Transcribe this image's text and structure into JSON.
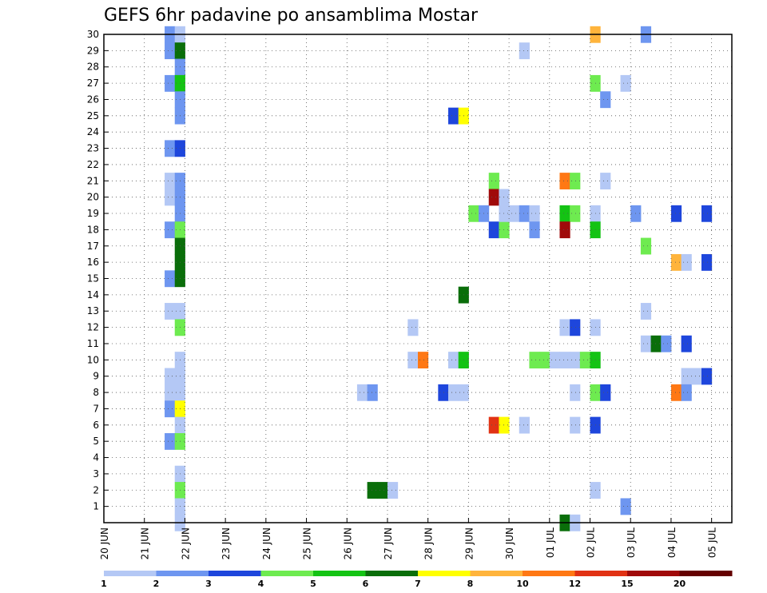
{
  "chart_data": {
    "type": "heatmap",
    "title": "GEFS 6hr padavine po ansamblima Mostar",
    "y_ticks": [
      "1",
      "2",
      "3",
      "4",
      "5",
      "6",
      "7",
      "8",
      "9",
      "10",
      "11",
      "12",
      "13",
      "14",
      "15",
      "16",
      "17",
      "18",
      "19",
      "20",
      "21",
      "22",
      "23",
      "24",
      "25",
      "26",
      "27",
      "28",
      "29",
      "30"
    ],
    "x_ticks": [
      "20 JUN",
      "21 JUN",
      "22 JUN",
      "23 JUN",
      "24 JUN",
      "25 JUN",
      "26 JUN",
      "27 JUN",
      "28 JUN",
      "29 JUN",
      "30 JUN",
      "01 JUL",
      "02 JUL",
      "03 JUL",
      "04 JUL",
      "05 JUL"
    ],
    "grid": true,
    "legend": {
      "placement": "bottom",
      "labels": [
        "1",
        "2",
        "3",
        "4",
        "5",
        "6",
        "7",
        "8",
        "10",
        "12",
        "15",
        "20"
      ],
      "colors": [
        "#b4c8f5",
        "#6e96f0",
        "#1e46dc",
        "#6eeb50",
        "#14c314",
        "#0a6e0a",
        "#ffff00",
        "#ffb43c",
        "#ff7814",
        "#e13214",
        "#a00a0a",
        "#640000"
      ]
    },
    "cells": [
      {
        "t": 1.5,
        "m": 30,
        "c": 2
      },
      {
        "t": 1.75,
        "m": 30,
        "c": 1
      },
      {
        "t": 1.5,
        "m": 29,
        "c": 2
      },
      {
        "t": 1.75,
        "m": 29,
        "c": 6
      },
      {
        "t": 1.75,
        "m": 28,
        "c": 2
      },
      {
        "t": 1.5,
        "m": 27,
        "c": 2
      },
      {
        "t": 1.75,
        "m": 27,
        "c": 5
      },
      {
        "t": 1.75,
        "m": 26,
        "c": 2
      },
      {
        "t": 1.75,
        "m": 25,
        "c": 2
      },
      {
        "t": 1.5,
        "m": 23,
        "c": 2
      },
      {
        "t": 1.75,
        "m": 23,
        "c": 3
      },
      {
        "t": 1.5,
        "m": 21,
        "c": 1
      },
      {
        "t": 1.75,
        "m": 21,
        "c": 2
      },
      {
        "t": 1.5,
        "m": 20,
        "c": 1
      },
      {
        "t": 1.75,
        "m": 20,
        "c": 2
      },
      {
        "t": 1.75,
        "m": 19,
        "c": 2
      },
      {
        "t": 1.5,
        "m": 18,
        "c": 2
      },
      {
        "t": 1.75,
        "m": 18,
        "c": 4
      },
      {
        "t": 1.75,
        "m": 17,
        "c": 6
      },
      {
        "t": 1.75,
        "m": 16,
        "c": 6
      },
      {
        "t": 1.5,
        "m": 15,
        "c": 2
      },
      {
        "t": 1.75,
        "m": 15,
        "c": 6
      },
      {
        "t": 1.5,
        "m": 13,
        "c": 1
      },
      {
        "t": 1.75,
        "m": 13,
        "c": 1
      },
      {
        "t": 1.75,
        "m": 12,
        "c": 4
      },
      {
        "t": 1.75,
        "m": 10,
        "c": 1
      },
      {
        "t": 1.5,
        "m": 9,
        "c": 1
      },
      {
        "t": 1.75,
        "m": 9,
        "c": 1
      },
      {
        "t": 1.5,
        "m": 8,
        "c": 1
      },
      {
        "t": 1.75,
        "m": 8,
        "c": 1
      },
      {
        "t": 1.5,
        "m": 7,
        "c": 2
      },
      {
        "t": 1.75,
        "m": 7,
        "c": 7
      },
      {
        "t": 1.75,
        "m": 6,
        "c": 1
      },
      {
        "t": 1.5,
        "m": 5,
        "c": 2
      },
      {
        "t": 1.75,
        "m": 5,
        "c": 4
      },
      {
        "t": 1.75,
        "m": 3,
        "c": 1
      },
      {
        "t": 1.75,
        "m": 2,
        "c": 4
      },
      {
        "t": 1.75,
        "m": 1,
        "c": 1
      },
      {
        "t": 1.75,
        "m": 0,
        "c": 1
      },
      {
        "t": 6.5,
        "m": 2,
        "c": 6
      },
      {
        "t": 6.75,
        "m": 2,
        "c": 6
      },
      {
        "t": 7,
        "m": 2,
        "c": 1
      },
      {
        "t": 6.25,
        "m": 8,
        "c": 1
      },
      {
        "t": 6.5,
        "m": 8,
        "c": 2
      },
      {
        "t": 7.5,
        "m": 12,
        "c": 1
      },
      {
        "t": 7.5,
        "m": 10,
        "c": 1
      },
      {
        "t": 7.75,
        "m": 10,
        "c": 9
      },
      {
        "t": 8.25,
        "m": 8,
        "c": 3
      },
      {
        "t": 8.5,
        "m": 8,
        "c": 1
      },
      {
        "t": 8.75,
        "m": 8,
        "c": 1
      },
      {
        "t": 8.5,
        "m": 10,
        "c": 1
      },
      {
        "t": 8.75,
        "m": 10,
        "c": 5
      },
      {
        "t": 8.5,
        "m": 25,
        "c": 3
      },
      {
        "t": 8.75,
        "m": 25,
        "c": 7
      },
      {
        "t": 8.75,
        "m": 14,
        "c": 6
      },
      {
        "t": 9,
        "m": 19,
        "c": 4
      },
      {
        "t": 9.25,
        "m": 19,
        "c": 2
      },
      {
        "t": 9.5,
        "m": 21,
        "c": 4
      },
      {
        "t": 9.5,
        "m": 20,
        "c": 11
      },
      {
        "t": 9.75,
        "m": 20,
        "c": 1
      },
      {
        "t": 9.5,
        "m": 18,
        "c": 3
      },
      {
        "t": 9.75,
        "m": 18,
        "c": 4
      },
      {
        "t": 9.75,
        "m": 19,
        "c": 1
      },
      {
        "t": 10,
        "m": 19,
        "c": 1
      },
      {
        "t": 10.25,
        "m": 19,
        "c": 2
      },
      {
        "t": 10.5,
        "m": 19,
        "c": 1
      },
      {
        "t": 10.5,
        "m": 18,
        "c": 2
      },
      {
        "t": 10.25,
        "m": 29,
        "c": 1
      },
      {
        "t": 9.5,
        "m": 6,
        "c": 10
      },
      {
        "t": 9.75,
        "m": 6,
        "c": 7
      },
      {
        "t": 10.25,
        "m": 6,
        "c": 1
      },
      {
        "t": 10.5,
        "m": 10,
        "c": 4
      },
      {
        "t": 10.75,
        "m": 10,
        "c": 4
      },
      {
        "t": 11,
        "m": 10,
        "c": 1
      },
      {
        "t": 11.25,
        "m": 10,
        "c": 1
      },
      {
        "t": 11.5,
        "m": 10,
        "c": 1
      },
      {
        "t": 11.25,
        "m": 21,
        "c": 9
      },
      {
        "t": 11.5,
        "m": 21,
        "c": 4
      },
      {
        "t": 11.25,
        "m": 19,
        "c": 5
      },
      {
        "t": 11.5,
        "m": 19,
        "c": 4
      },
      {
        "t": 11.25,
        "m": 18,
        "c": 11
      },
      {
        "t": 11.25,
        "m": 12,
        "c": 1
      },
      {
        "t": 11.5,
        "m": 12,
        "c": 3
      },
      {
        "t": 11.5,
        "m": 8,
        "c": 1
      },
      {
        "t": 11.5,
        "m": 6,
        "c": 1
      },
      {
        "t": 11.25,
        "m": 0,
        "c": 6
      },
      {
        "t": 11.5,
        "m": 0,
        "c": 1
      },
      {
        "t": 11.75,
        "m": 10,
        "c": 4
      },
      {
        "t": 12,
        "m": 10,
        "c": 5
      },
      {
        "t": 12,
        "m": 30,
        "c": 8
      },
      {
        "t": 12,
        "m": 27,
        "c": 4
      },
      {
        "t": 12.25,
        "m": 26,
        "c": 2
      },
      {
        "t": 12.25,
        "m": 21,
        "c": 1
      },
      {
        "t": 12,
        "m": 19,
        "c": 1
      },
      {
        "t": 12,
        "m": 18,
        "c": 5
      },
      {
        "t": 12,
        "m": 12,
        "c": 1
      },
      {
        "t": 12,
        "m": 8,
        "c": 4
      },
      {
        "t": 12.25,
        "m": 8,
        "c": 3
      },
      {
        "t": 12,
        "m": 6,
        "c": 3
      },
      {
        "t": 12,
        "m": 2,
        "c": 1
      },
      {
        "t": 12.75,
        "m": 27,
        "c": 1
      },
      {
        "t": 13,
        "m": 19,
        "c": 2
      },
      {
        "t": 12.75,
        "m": 1,
        "c": 2
      },
      {
        "t": 13.25,
        "m": 30,
        "c": 2
      },
      {
        "t": 13.25,
        "m": 17,
        "c": 4
      },
      {
        "t": 13.25,
        "m": 13,
        "c": 1
      },
      {
        "t": 13.25,
        "m": 11,
        "c": 1
      },
      {
        "t": 13.5,
        "m": 11,
        "c": 6
      },
      {
        "t": 13.75,
        "m": 11,
        "c": 2
      },
      {
        "t": 14,
        "m": 19,
        "c": 3
      },
      {
        "t": 14,
        "m": 16,
        "c": 8
      },
      {
        "t": 14.25,
        "m": 16,
        "c": 1
      },
      {
        "t": 14.25,
        "m": 11,
        "c": 3
      },
      {
        "t": 14.25,
        "m": 9,
        "c": 1
      },
      {
        "t": 14,
        "m": 8,
        "c": 9
      },
      {
        "t": 14.25,
        "m": 8,
        "c": 2
      },
      {
        "t": 14.5,
        "m": 9,
        "c": 1
      },
      {
        "t": 14.75,
        "m": 9,
        "c": 3
      },
      {
        "t": 14.75,
        "m": 19,
        "c": 3
      },
      {
        "t": 14.75,
        "m": 16,
        "c": 3
      }
    ]
  }
}
